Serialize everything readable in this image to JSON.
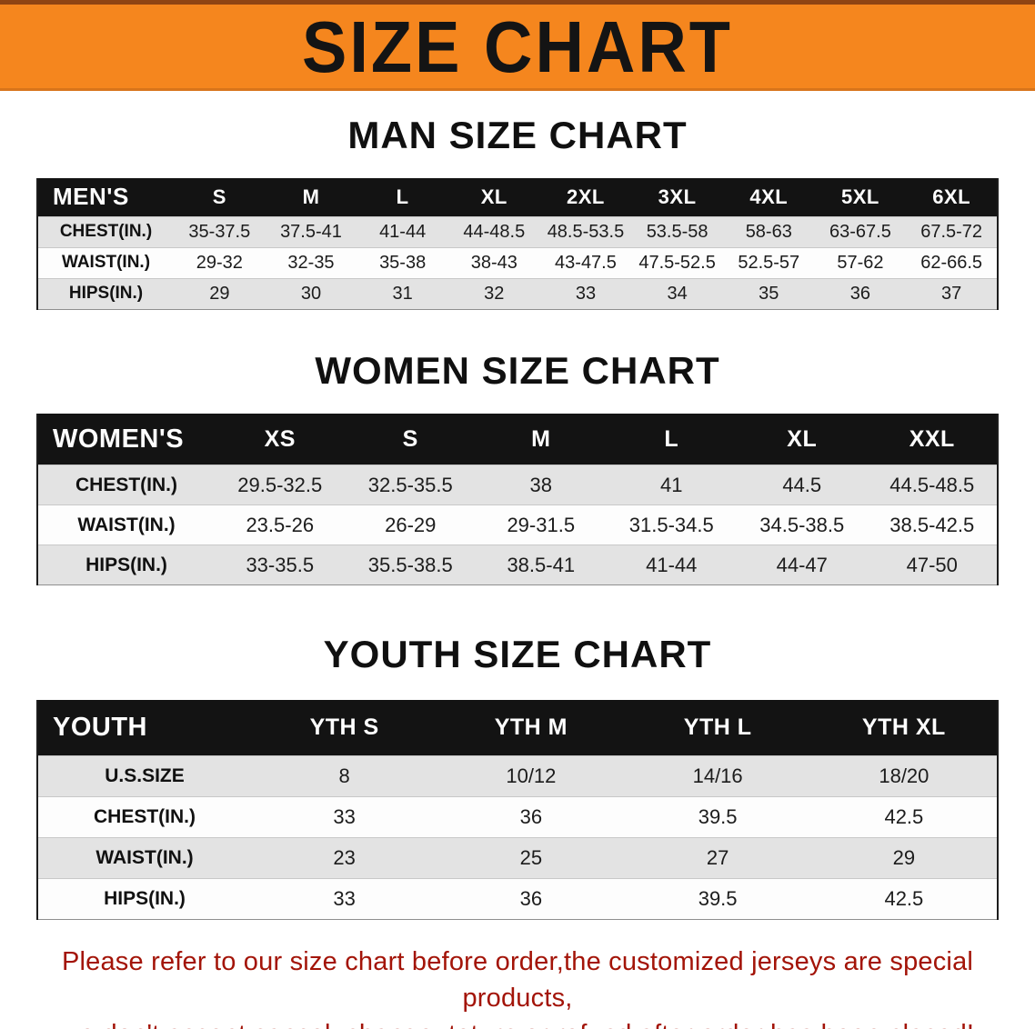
{
  "banner": {
    "title": "SIZE CHART"
  },
  "colors": {
    "banner_orange": "#f5861e",
    "table_header_black": "#131313",
    "row_stripe_gray": "#e3e3e3",
    "footer_red": "#a31408"
  },
  "sections": {
    "men": {
      "heading": "MAN SIZE CHART",
      "table": {
        "header": [
          "MEN'S",
          "S",
          "M",
          "L",
          "XL",
          "2XL",
          "3XL",
          "4XL",
          "5XL",
          "6XL"
        ],
        "rows": [
          [
            "CHEST(IN.)",
            "35-37.5",
            "37.5-41",
            "41-44",
            "44-48.5",
            "48.5-53.5",
            "53.5-58",
            "58-63",
            "63-67.5",
            "67.5-72"
          ],
          [
            "WAIST(IN.)",
            "29-32",
            "32-35",
            "35-38",
            "38-43",
            "43-47.5",
            "47.5-52.5",
            "52.5-57",
            "57-62",
            "62-66.5"
          ],
          [
            "HIPS(IN.)",
            "29",
            "30",
            "31",
            "32",
            "33",
            "34",
            "35",
            "36",
            "37"
          ]
        ]
      }
    },
    "women": {
      "heading": "WOMEN SIZE CHART",
      "table": {
        "header": [
          "WOMEN'S",
          "XS",
          "S",
          "M",
          "L",
          "XL",
          "XXL"
        ],
        "rows": [
          [
            "CHEST(IN.)",
            "29.5-32.5",
            "32.5-35.5",
            "38",
            "41",
            "44.5",
            "44.5-48.5"
          ],
          [
            "WAIST(IN.)",
            "23.5-26",
            "26-29",
            "29-31.5",
            "31.5-34.5",
            "34.5-38.5",
            "38.5-42.5"
          ],
          [
            "HIPS(IN.)",
            "33-35.5",
            "35.5-38.5",
            "38.5-41",
            "41-44",
            "44-47",
            "47-50"
          ]
        ]
      }
    },
    "youth": {
      "heading": "YOUTH SIZE CHART",
      "table": {
        "header": [
          "YOUTH",
          "YTH S",
          "YTH M",
          "YTH L",
          "YTH XL"
        ],
        "rows": [
          [
            "U.S.SIZE",
            "8",
            "10/12",
            "14/16",
            "18/20"
          ],
          [
            "CHEST(IN.)",
            "33",
            "36",
            "39.5",
            "42.5"
          ],
          [
            "WAIST(IN.)",
            "23",
            "25",
            "27",
            "29"
          ],
          [
            "HIPS(IN.)",
            "33",
            "36",
            "39.5",
            "42.5"
          ]
        ]
      }
    }
  },
  "footer": {
    "line1": "Please refer to our size chart before order,the customized jerseys are special products,",
    "line2": "we don't accept cancel, change, teturn or refund after order has been placed!"
  }
}
